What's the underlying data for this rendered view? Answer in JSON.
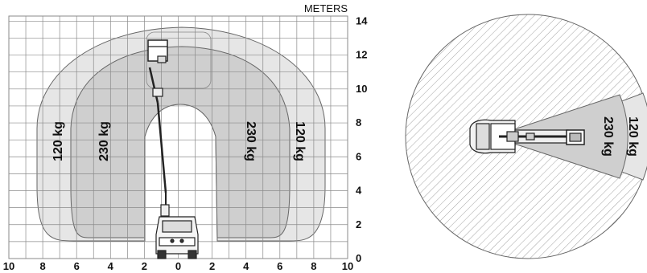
{
  "side_view": {
    "unit_label": "METERS",
    "x_axis": {
      "ticks": [
        "10",
        "8",
        "6",
        "4",
        "2",
        "0",
        "2",
        "4",
        "6",
        "8",
        "10"
      ]
    },
    "y_axis": {
      "ticks": [
        "0",
        "2",
        "4",
        "6",
        "8",
        "10",
        "12",
        "14"
      ]
    },
    "zones": [
      {
        "label": "120 kg",
        "reach_m": 8.7,
        "fill": "#e6e6e6"
      },
      {
        "label": "230 kg",
        "reach_m": 6.3,
        "fill": "#cfcfcf"
      }
    ],
    "left_labels": [
      "120 kg",
      "230 kg"
    ],
    "right_labels": [
      "230 kg",
      "120 kg"
    ]
  },
  "top_view": {
    "zones": [
      {
        "label": "230 kg",
        "fill": "#cfcfcf"
      },
      {
        "label": "120 kg",
        "fill": "#e6e6e6"
      }
    ],
    "hatch_color": "#9a9a9a"
  },
  "colors": {
    "grid": "#8a8a8a",
    "outline": "#555555",
    "text": "#111111"
  }
}
